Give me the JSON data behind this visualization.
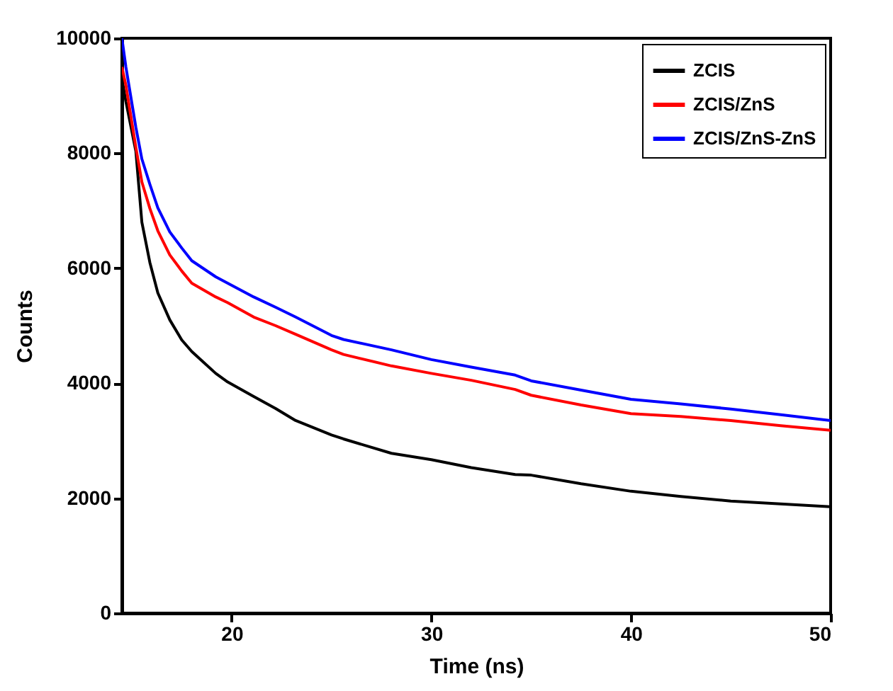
{
  "chart_data": {
    "type": "line",
    "xlabel": "Time (ns)",
    "ylabel": "Counts",
    "xlim": [
      14.5,
      50
    ],
    "ylim": [
      0,
      10000
    ],
    "xticks": [
      20,
      30,
      40,
      50
    ],
    "yticks": [
      0,
      2000,
      4000,
      6000,
      8000,
      10000
    ],
    "grid": false,
    "legend": "top right",
    "marker": "none",
    "line_style": "solid",
    "x": [
      14.5,
      14.7,
      15.2,
      15.5,
      15.9,
      16.3,
      16.9,
      17.5,
      18,
      19.2,
      19.8,
      21.1,
      22.2,
      23.2,
      25,
      25.6,
      28,
      30,
      32,
      34.2,
      35,
      37.5,
      40,
      42.5,
      45,
      47.5,
      50
    ],
    "series": [
      {
        "name": "ZCIS",
        "color": "#000000",
        "values": [
          9300,
          8900,
          8030,
          6800,
          6100,
          5570,
          5100,
          4750,
          4550,
          4170,
          4020,
          3770,
          3560,
          3350,
          3100,
          3030,
          2780,
          2670,
          2530,
          2410,
          2400,
          2250,
          2120,
          2030,
          1950,
          1900,
          1850
        ]
      },
      {
        "name": "ZCIS/ZnS",
        "color": "#ff0000",
        "values": [
          9500,
          9180,
          8100,
          7500,
          7040,
          6650,
          6230,
          5950,
          5740,
          5500,
          5400,
          5150,
          5000,
          4850,
          4580,
          4500,
          4300,
          4170,
          4050,
          3890,
          3790,
          3620,
          3470,
          3420,
          3350,
          3260,
          3180
        ]
      },
      {
        "name": "ZCIS/ZnS-ZnS",
        "color": "#0000ff",
        "values": [
          10000,
          9500,
          8450,
          7900,
          7460,
          7050,
          6630,
          6350,
          6130,
          5850,
          5740,
          5500,
          5320,
          5150,
          4830,
          4760,
          4580,
          4410,
          4280,
          4140,
          4040,
          3880,
          3720,
          3640,
          3550,
          3450,
          3350
        ]
      }
    ]
  }
}
